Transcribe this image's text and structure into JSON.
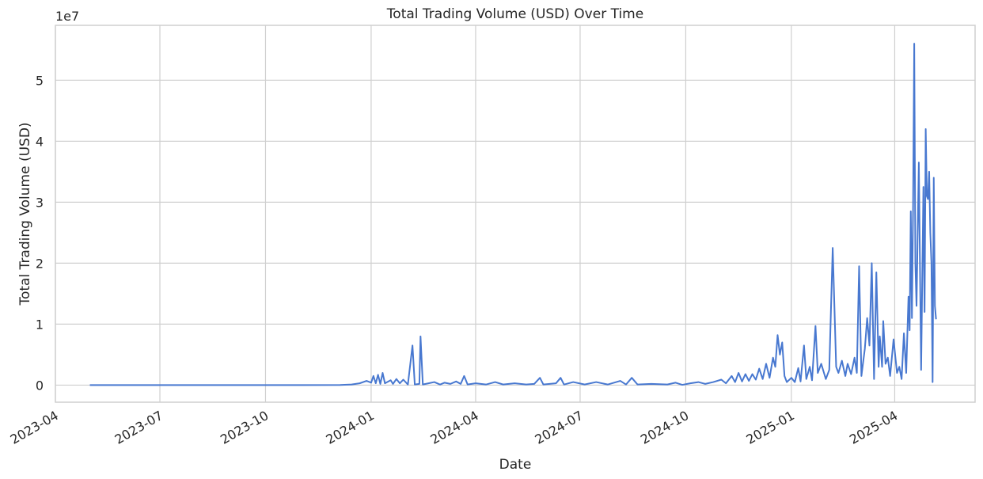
{
  "chart_data": {
    "type": "line",
    "title": "Total Trading Volume (USD) Over Time",
    "xlabel": "Date",
    "ylabel": "Total Trading Volume (USD)",
    "y_offset_label": "1e7",
    "ylim": [
      -2800000,
      59000000
    ],
    "xlim": [
      "2023-04-01",
      "2025-06-10"
    ],
    "x_ticks": [
      "2023-04-01",
      "2023-07-01",
      "2023-10-01",
      "2024-01-01",
      "2024-04-01",
      "2024-07-01",
      "2024-10-01",
      "2025-01-01",
      "2025-04-01"
    ],
    "x_tick_labels": [
      "2023-04",
      "2023-07",
      "2023-10",
      "2024-01",
      "2024-04",
      "2024-07",
      "2024-10",
      "2025-01",
      "2025-04"
    ],
    "y_ticks": [
      0,
      10000000,
      20000000,
      30000000,
      40000000,
      50000000
    ],
    "y_tick_labels": [
      "0",
      "1",
      "2",
      "3",
      "4",
      "5"
    ],
    "grid": true,
    "series": [
      {
        "color": "#4878d0",
        "points": [
          [
            "2023-05-01",
            0
          ],
          [
            "2023-07-01",
            0
          ],
          [
            "2023-09-01",
            0
          ],
          [
            "2023-11-01",
            0
          ],
          [
            "2023-12-05",
            20000
          ],
          [
            "2023-12-15",
            100000
          ],
          [
            "2023-12-22",
            300000
          ],
          [
            "2023-12-28",
            700000
          ],
          [
            "2024-01-01",
            400000
          ],
          [
            "2024-01-03",
            1500000
          ],
          [
            "2024-01-05",
            300000
          ],
          [
            "2024-01-07",
            1700000
          ],
          [
            "2024-01-09",
            200000
          ],
          [
            "2024-01-11",
            2000000
          ],
          [
            "2024-01-13",
            300000
          ],
          [
            "2024-01-18",
            800000
          ],
          [
            "2024-01-20",
            200000
          ],
          [
            "2024-01-23",
            1000000
          ],
          [
            "2024-01-26",
            300000
          ],
          [
            "2024-01-29",
            900000
          ],
          [
            "2024-02-02",
            100000
          ],
          [
            "2024-02-06",
            6500000
          ],
          [
            "2024-02-08",
            100000
          ],
          [
            "2024-02-12",
            200000
          ],
          [
            "2024-02-13",
            8000000
          ],
          [
            "2024-02-15",
            100000
          ],
          [
            "2024-02-20",
            300000
          ],
          [
            "2024-02-25",
            500000
          ],
          [
            "2024-03-01",
            100000
          ],
          [
            "2024-03-05",
            400000
          ],
          [
            "2024-03-10",
            200000
          ],
          [
            "2024-03-15",
            600000
          ],
          [
            "2024-03-19",
            200000
          ],
          [
            "2024-03-22",
            1500000
          ],
          [
            "2024-03-25",
            100000
          ],
          [
            "2024-04-01",
            300000
          ],
          [
            "2024-04-10",
            100000
          ],
          [
            "2024-04-18",
            500000
          ],
          [
            "2024-04-25",
            100000
          ],
          [
            "2024-05-05",
            300000
          ],
          [
            "2024-05-15",
            100000
          ],
          [
            "2024-05-22",
            200000
          ],
          [
            "2024-05-27",
            1200000
          ],
          [
            "2024-05-30",
            100000
          ],
          [
            "2024-06-10",
            300000
          ],
          [
            "2024-06-14",
            1200000
          ],
          [
            "2024-06-17",
            100000
          ],
          [
            "2024-06-25",
            500000
          ],
          [
            "2024-07-05",
            100000
          ],
          [
            "2024-07-15",
            500000
          ],
          [
            "2024-07-25",
            100000
          ],
          [
            "2024-08-05",
            700000
          ],
          [
            "2024-08-10",
            100000
          ],
          [
            "2024-08-15",
            1200000
          ],
          [
            "2024-08-20",
            100000
          ],
          [
            "2024-09-01",
            200000
          ],
          [
            "2024-09-15",
            100000
          ],
          [
            "2024-09-22",
            400000
          ],
          [
            "2024-09-28",
            50000
          ],
          [
            "2024-10-05",
            300000
          ],
          [
            "2024-10-12",
            500000
          ],
          [
            "2024-10-18",
            200000
          ],
          [
            "2024-10-25",
            500000
          ],
          [
            "2024-11-01",
            900000
          ],
          [
            "2024-11-05",
            300000
          ],
          [
            "2024-11-10",
            1500000
          ],
          [
            "2024-11-13",
            500000
          ],
          [
            "2024-11-16",
            2000000
          ],
          [
            "2024-11-19",
            600000
          ],
          [
            "2024-11-22",
            1800000
          ],
          [
            "2024-11-25",
            700000
          ],
          [
            "2024-11-28",
            1800000
          ],
          [
            "2024-12-01",
            900000
          ],
          [
            "2024-12-04",
            2700000
          ],
          [
            "2024-12-07",
            1000000
          ],
          [
            "2024-12-10",
            3500000
          ],
          [
            "2024-12-13",
            1200000
          ],
          [
            "2024-12-16",
            4500000
          ],
          [
            "2024-12-18",
            3000000
          ],
          [
            "2024-12-20",
            8200000
          ],
          [
            "2024-12-22",
            5000000
          ],
          [
            "2024-12-24",
            7000000
          ],
          [
            "2024-12-26",
            1500000
          ],
          [
            "2024-12-28",
            500000
          ],
          [
            "2025-01-01",
            1200000
          ],
          [
            "2025-01-04",
            500000
          ],
          [
            "2025-01-07",
            2800000
          ],
          [
            "2025-01-09",
            600000
          ],
          [
            "2025-01-12",
            6500000
          ],
          [
            "2025-01-14",
            1000000
          ],
          [
            "2025-01-17",
            3000000
          ],
          [
            "2025-01-19",
            800000
          ],
          [
            "2025-01-22",
            9700000
          ],
          [
            "2025-01-24",
            2000000
          ],
          [
            "2025-01-27",
            3500000
          ],
          [
            "2025-01-31",
            1000000
          ],
          [
            "2025-02-03",
            2500000
          ],
          [
            "2025-02-06",
            22500000
          ],
          [
            "2025-02-09",
            3000000
          ],
          [
            "2025-02-11",
            2000000
          ],
          [
            "2025-02-14",
            4000000
          ],
          [
            "2025-02-17",
            1500000
          ],
          [
            "2025-02-19",
            3500000
          ],
          [
            "2025-02-22",
            1800000
          ],
          [
            "2025-02-25",
            4500000
          ],
          [
            "2025-02-27",
            2000000
          ],
          [
            "2025-03-01",
            19500000
          ],
          [
            "2025-03-03",
            1500000
          ],
          [
            "2025-03-06",
            6000000
          ],
          [
            "2025-03-08",
            11000000
          ],
          [
            "2025-03-10",
            6500000
          ],
          [
            "2025-03-12",
            20000000
          ],
          [
            "2025-03-14",
            1000000
          ],
          [
            "2025-03-16",
            18500000
          ],
          [
            "2025-03-18",
            3000000
          ],
          [
            "2025-03-19",
            8000000
          ],
          [
            "2025-03-21",
            3000000
          ],
          [
            "2025-03-22",
            10500000
          ],
          [
            "2025-03-24",
            3500000
          ],
          [
            "2025-03-26",
            4500000
          ],
          [
            "2025-03-28",
            1500000
          ],
          [
            "2025-03-31",
            7500000
          ],
          [
            "2025-04-03",
            2000000
          ],
          [
            "2025-04-05",
            3000000
          ],
          [
            "2025-04-07",
            1000000
          ],
          [
            "2025-04-09",
            8500000
          ],
          [
            "2025-04-11",
            2000000
          ],
          [
            "2025-04-13",
            14500000
          ],
          [
            "2025-04-14",
            9000000
          ],
          [
            "2025-04-15",
            28500000
          ],
          [
            "2025-04-16",
            11000000
          ],
          [
            "2025-04-17",
            29000000
          ],
          [
            "2025-04-18",
            56000000
          ],
          [
            "2025-04-19",
            20000000
          ],
          [
            "2025-04-20",
            13000000
          ],
          [
            "2025-04-22",
            36500000
          ],
          [
            "2025-04-24",
            2500000
          ],
          [
            "2025-04-26",
            32500000
          ],
          [
            "2025-04-27",
            12000000
          ],
          [
            "2025-04-28",
            42000000
          ],
          [
            "2025-04-29",
            31000000
          ],
          [
            "2025-04-30",
            30500000
          ],
          [
            "2025-05-01",
            35000000
          ],
          [
            "2025-05-02",
            25000000
          ],
          [
            "2025-05-03",
            20000000
          ],
          [
            "2025-05-04",
            500000
          ],
          [
            "2025-05-05",
            34000000
          ],
          [
            "2025-05-06",
            13000000
          ],
          [
            "2025-05-07",
            10800000
          ]
        ]
      }
    ]
  }
}
